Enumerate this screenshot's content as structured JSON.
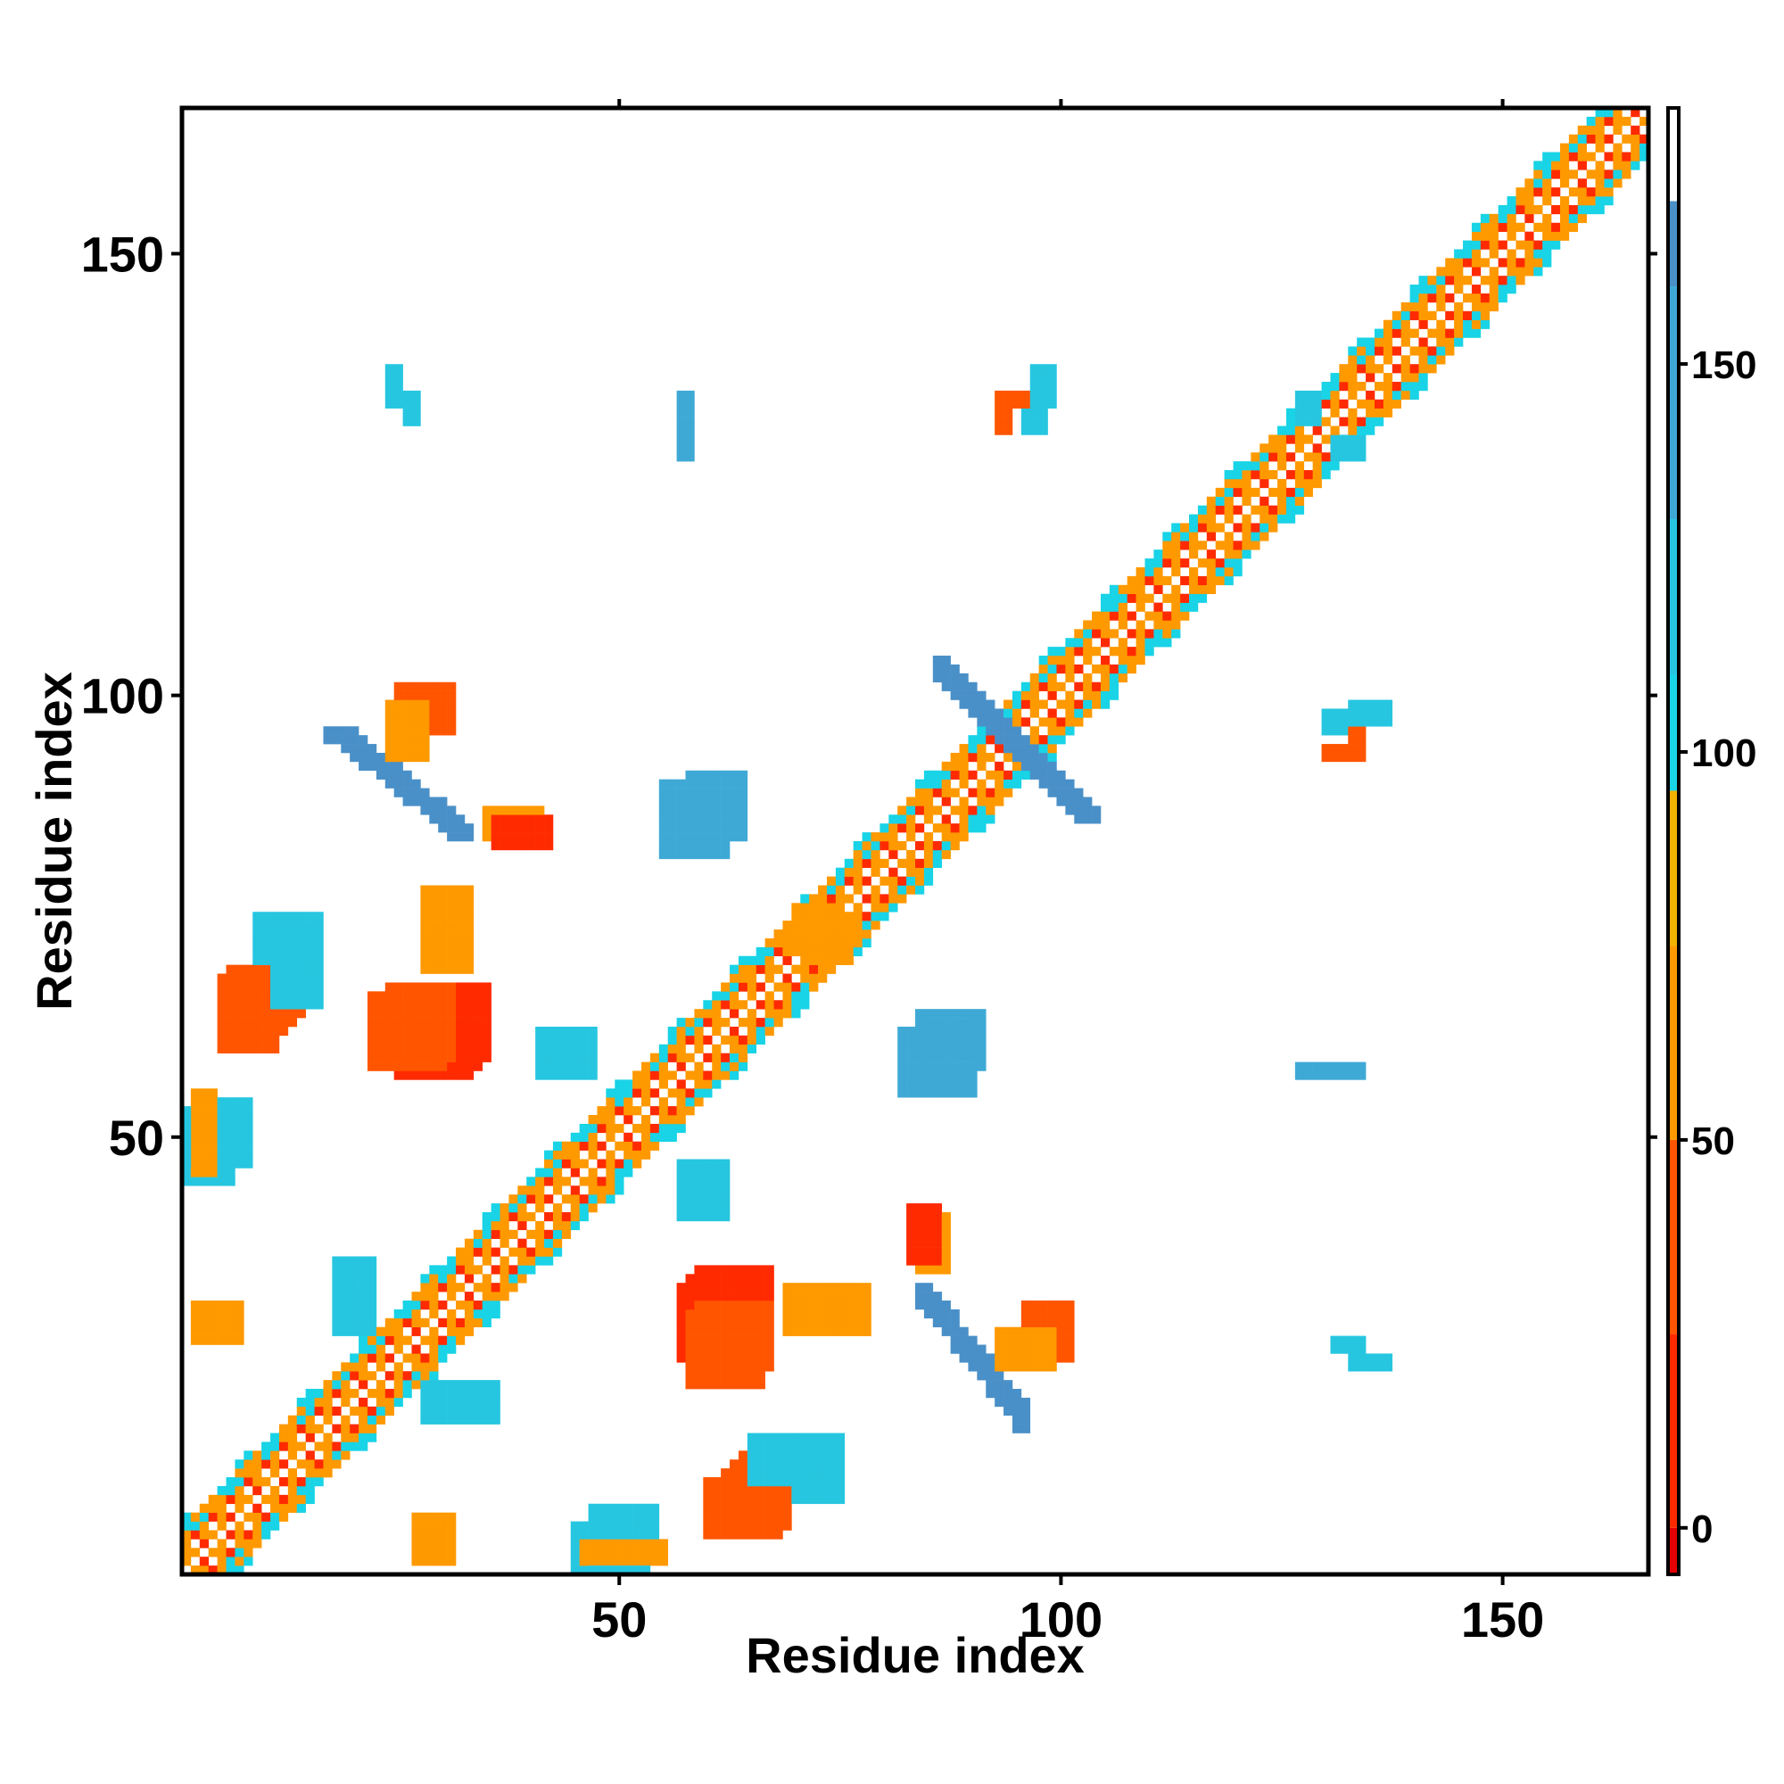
{
  "chart_data": {
    "type": "heatmap",
    "title": "",
    "xlabel": "Residue index",
    "ylabel": "Residue index",
    "xlim": [
      1,
      166
    ],
    "ylim": [
      1,
      166
    ],
    "x_ticks": [
      50,
      100,
      150
    ],
    "y_ticks": [
      50,
      100,
      150
    ],
    "grid": false,
    "colorbar": {
      "placement": "right",
      "range": [
        -6,
        183
      ],
      "ticks": [
        0,
        50,
        100,
        150
      ],
      "bands": [
        {
          "from": -6,
          "to": 0,
          "color": "#e60000"
        },
        {
          "from": 0,
          "to": 25,
          "color": "#ff2a00"
        },
        {
          "from": 25,
          "to": 50,
          "color": "#ff5500"
        },
        {
          "from": 50,
          "to": 75,
          "color": "#ff9900"
        },
        {
          "from": 75,
          "to": 95,
          "color": "#f2b200"
        },
        {
          "from": 95,
          "to": 110,
          "color": "#19d3e6"
        },
        {
          "from": 110,
          "to": 130,
          "color": "#26c6e0"
        },
        {
          "from": 130,
          "to": 160,
          "color": "#3fa9d6"
        },
        {
          "from": 160,
          "to": 171,
          "color": "#4a90c8"
        },
        {
          "from": 171,
          "to": 183,
          "color": "#ffffff"
        }
      ]
    },
    "color_scale_note_values": {
      "red": 0,
      "orange": 50,
      "cyan": 100,
      "blue": 150
    },
    "diagonal_band": {
      "from": 1,
      "to": 166,
      "center_value": 183,
      "near_value": 10,
      "mid_value": 55,
      "far_value": 100
    },
    "regions": [
      {
        "cells": [
          [
            6,
            12,
            62,
            66
          ],
          [
            7,
            13,
            63,
            67
          ],
          [
            9,
            14,
            64,
            67
          ]
        ],
        "value": 30
      },
      {
        "cells": [
          [
            25,
            33,
            57,
            66
          ],
          [
            26,
            34,
            58,
            67
          ],
          [
            28,
            35,
            59,
            67
          ]
        ],
        "value": 15
      },
      {
        "cells": [
          [
            58,
            66,
            22,
            30
          ],
          [
            59,
            67,
            24,
            31
          ]
        ],
        "value": 30
      },
      {
        "cells": [
          [
            60,
            68,
            5,
            11
          ],
          [
            61,
            69,
            6,
            11
          ]
        ],
        "value": 45
      },
      {
        "cells": [
          [
            18,
            33,
            84,
            96
          ]
        ],
        "value": 160,
        "shape": "anti-diagonal"
      },
      {
        "cells": [
          [
            86,
            96,
            17,
            31
          ]
        ],
        "value": 160,
        "shape": "anti-diagonal"
      },
      {
        "cells": [
          [
            86,
            103,
            86,
            104
          ]
        ],
        "value": 160,
        "shape": "cross"
      },
      {
        "cells": [
          [
            26,
            27,
            131,
            134
          ],
          [
            127,
            129,
            131,
            134
          ]
        ],
        "value": 120
      },
      {
        "cells": [
          [
            57,
            58,
            127,
            130
          ]
        ],
        "value": 150
      },
      {
        "cells": [
          [
            93,
            94,
            130,
            133
          ]
        ],
        "value": 45
      },
      {
        "cells": [
          [
            96,
            98,
            130,
            133
          ]
        ],
        "value": 120
      },
      {
        "cells": [
          [
            133,
            134,
            93,
            96
          ]
        ],
        "value": 45
      },
      {
        "cells": [
          [
            133,
            137,
            97,
            99
          ]
        ],
        "value": 120
      },
      {
        "cells": [
          [
            131,
            134,
            57,
            58
          ]
        ],
        "value": 150
      },
      {
        "cells": [
          [
            133,
            137,
            24,
            25
          ]
        ],
        "value": 120
      },
      {
        "cells": [
          [
            2,
            8,
            47,
            54
          ]
        ],
        "value": 110
      },
      {
        "cells": [
          [
            9,
            16,
            70,
            75
          ]
        ],
        "value": 110
      },
      {
        "cells": [
          [
            28,
            36,
            18,
            22
          ]
        ],
        "value": 110
      },
      {
        "cells": [
          [
            57,
            62,
            41,
            47
          ]
        ],
        "value": 110
      },
      {
        "cells": [
          [
            58,
            64,
            84,
            91
          ]
        ],
        "value": 150
      },
      {
        "cells": [
          [
            65,
            71,
            11,
            16
          ]
        ],
        "value": 110
      },
      {
        "cells": [
          [
            70,
            75,
            71,
            76
          ]
        ],
        "value": 50
      },
      {
        "cells": [
          [
            82,
            90,
            55,
            62
          ]
        ],
        "value": 150
      },
      {
        "cells": [
          [
            84,
            87,
            35,
            41
          ]
        ],
        "value": 60
      },
      {
        "cells": [
          [
            28,
            33,
            69,
            78
          ]
        ],
        "value": 70
      },
      {
        "cells": [
          [
            36,
            42,
            83,
            86
          ]
        ],
        "value": 20
      },
      {
        "cells": [
          [
            25,
            31,
            96,
            101
          ]
        ],
        "value": 25
      },
      {
        "cells": [
          [
            45,
            53,
            1,
            6
          ]
        ],
        "value": 110
      },
      {
        "cells": [
          [
            46,
            55,
            2,
            4
          ]
        ],
        "value": 60
      },
      {
        "cells": [
          [
            27,
            31,
            2,
            7
          ]
        ],
        "value": 60
      },
      {
        "cells": [
          [
            93,
            99,
            24,
            28
          ]
        ],
        "value": 60
      }
    ]
  }
}
